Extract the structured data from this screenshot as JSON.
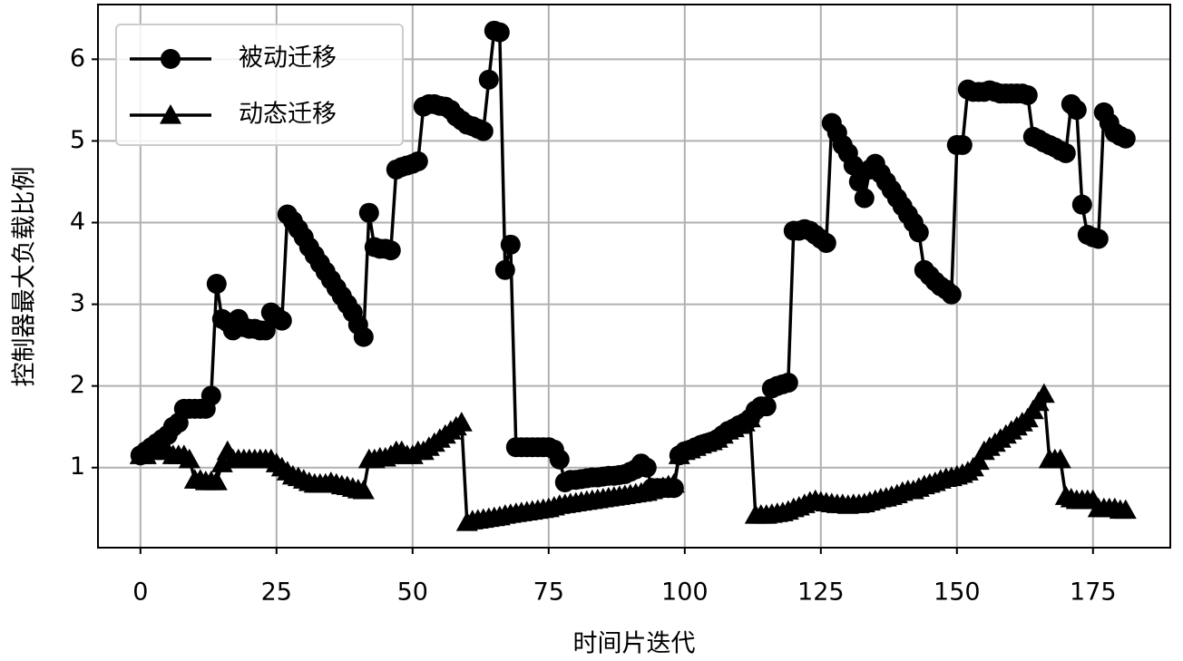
{
  "chart_data": {
    "type": "line",
    "xlabel": "时间片迭代",
    "ylabel": "控制器最大负载比例",
    "x": [
      0,
      1,
      2,
      3,
      4,
      5,
      6,
      7,
      8,
      9,
      10,
      11,
      12,
      13,
      14,
      15,
      16,
      17,
      18,
      19,
      20,
      21,
      22,
      23,
      24,
      25,
      26,
      27,
      28,
      29,
      30,
      31,
      32,
      33,
      34,
      35,
      36,
      37,
      38,
      39,
      40,
      41,
      42,
      43,
      44,
      45,
      46,
      47,
      48,
      49,
      50,
      51,
      52,
      53,
      54,
      55,
      56,
      57,
      58,
      59,
      60,
      61,
      62,
      63,
      64,
      65,
      66,
      67,
      68,
      69,
      70,
      71,
      72,
      73,
      74,
      75,
      76,
      77,
      78,
      79,
      80,
      81,
      82,
      83,
      84,
      85,
      86,
      87,
      88,
      89,
      90,
      91,
      92,
      93,
      94,
      95,
      96,
      97,
      98,
      99,
      100,
      101,
      102,
      103,
      104,
      105,
      106,
      107,
      108,
      109,
      110,
      111,
      112,
      113,
      114,
      115,
      116,
      117,
      118,
      119,
      120,
      121,
      122,
      123,
      124,
      125,
      126,
      127,
      128,
      129,
      130,
      131,
      132,
      133,
      134,
      135,
      136,
      137,
      138,
      139,
      140,
      141,
      142,
      143,
      144,
      145,
      146,
      147,
      148,
      149,
      150,
      151,
      152,
      153,
      154,
      155,
      156,
      157,
      158,
      159,
      160,
      161,
      162,
      163,
      164,
      165,
      166,
      167,
      168,
      169,
      170,
      171,
      172,
      173,
      174,
      175,
      176,
      177,
      178,
      179,
      180,
      181
    ],
    "series": [
      {
        "name": "被动迁移",
        "color": "#000000",
        "marker": "o",
        "values": [
          1.15,
          1.2,
          1.25,
          1.3,
          1.35,
          1.4,
          1.5,
          1.55,
          1.72,
          1.72,
          1.72,
          1.72,
          1.72,
          1.88,
          3.25,
          2.82,
          2.78,
          2.68,
          2.82,
          2.72,
          2.7,
          2.7,
          2.68,
          2.68,
          2.9,
          2.85,
          2.8,
          4.1,
          4.02,
          3.92,
          3.82,
          3.7,
          3.6,
          3.5,
          3.4,
          3.3,
          3.2,
          3.1,
          3.0,
          2.9,
          2.75,
          2.6,
          4.12,
          3.7,
          3.68,
          3.68,
          3.66,
          4.65,
          4.68,
          4.7,
          4.72,
          4.75,
          5.42,
          5.45,
          5.45,
          5.43,
          5.42,
          5.38,
          5.3,
          5.25,
          5.2,
          5.18,
          5.15,
          5.12,
          5.75,
          6.35,
          6.33,
          3.42,
          3.73,
          1.25,
          1.25,
          1.25,
          1.25,
          1.25,
          1.25,
          1.25,
          1.22,
          1.1,
          0.82,
          0.85,
          0.85,
          0.86,
          0.87,
          0.88,
          0.88,
          0.89,
          0.9,
          0.9,
          0.91,
          0.92,
          0.95,
          0.98,
          1.05,
          1.0,
          0.75,
          0.75,
          0.75,
          0.75,
          0.75,
          1.15,
          1.2,
          1.22,
          1.25,
          1.28,
          1.3,
          1.32,
          1.35,
          1.4,
          1.45,
          1.48,
          1.52,
          1.55,
          1.6,
          1.7,
          1.75,
          1.75,
          1.97,
          2.0,
          2.02,
          2.04,
          3.9,
          3.9,
          3.92,
          3.9,
          3.85,
          3.8,
          3.75,
          5.22,
          5.1,
          4.95,
          4.85,
          4.7,
          4.5,
          4.3,
          4.65,
          4.72,
          4.6,
          4.5,
          4.4,
          4.3,
          4.2,
          4.1,
          4.0,
          3.88,
          3.42,
          3.35,
          3.28,
          3.22,
          3.18,
          3.12,
          4.95,
          4.95,
          5.63,
          5.6,
          5.6,
          5.6,
          5.62,
          5.6,
          5.58,
          5.58,
          5.58,
          5.58,
          5.58,
          5.56,
          5.05,
          5.02,
          4.98,
          4.95,
          4.92,
          4.88,
          4.85,
          5.45,
          5.38,
          4.22,
          3.85,
          3.82,
          3.8,
          5.35,
          5.22,
          5.1,
          5.06,
          5.03
        ]
      },
      {
        "name": "动态迁移",
        "color": "#000000",
        "marker": "^",
        "values": [
          1.15,
          1.15,
          1.2,
          1.25,
          1.3,
          1.2,
          1.15,
          1.15,
          1.15,
          1.1,
          0.85,
          0.85,
          0.83,
          0.83,
          0.83,
          1.05,
          1.2,
          1.1,
          1.1,
          1.1,
          1.1,
          1.1,
          1.1,
          1.1,
          1.1,
          1.05,
          1.0,
          0.95,
          0.9,
          0.88,
          0.85,
          0.82,
          0.8,
          0.8,
          0.8,
          0.82,
          0.8,
          0.78,
          0.77,
          0.75,
          0.73,
          0.72,
          1.1,
          1.1,
          1.12,
          1.12,
          1.15,
          1.2,
          1.2,
          1.15,
          1.15,
          1.2,
          1.2,
          1.25,
          1.3,
          1.35,
          1.4,
          1.45,
          1.5,
          1.55,
          0.33,
          0.35,
          0.36,
          0.37,
          0.38,
          0.39,
          0.4,
          0.42,
          0.43,
          0.44,
          0.45,
          0.46,
          0.47,
          0.48,
          0.49,
          0.5,
          0.52,
          0.54,
          0.55,
          0.56,
          0.57,
          0.58,
          0.59,
          0.6,
          0.61,
          0.62,
          0.63,
          0.64,
          0.65,
          0.66,
          0.67,
          0.68,
          0.69,
          0.7,
          0.72,
          0.74,
          0.76,
          0.78,
          0.8,
          1.15,
          1.2,
          1.22,
          1.25,
          1.28,
          1.3,
          1.32,
          1.35,
          1.4,
          1.45,
          1.48,
          1.52,
          1.55,
          1.6,
          0.42,
          0.42,
          0.42,
          0.43,
          0.44,
          0.45,
          0.47,
          0.5,
          0.52,
          0.55,
          0.58,
          0.6,
          0.58,
          0.57,
          0.56,
          0.55,
          0.55,
          0.54,
          0.55,
          0.55,
          0.56,
          0.58,
          0.6,
          0.62,
          0.63,
          0.65,
          0.67,
          0.7,
          0.72,
          0.72,
          0.75,
          0.78,
          0.8,
          0.82,
          0.85,
          0.87,
          0.88,
          0.9,
          0.92,
          0.95,
          1.0,
          1.08,
          1.2,
          1.25,
          1.3,
          1.35,
          1.4,
          1.45,
          1.5,
          1.55,
          1.6,
          1.7,
          1.8,
          1.9,
          1.1,
          1.1,
          1.1,
          0.65,
          0.62,
          0.6,
          0.6,
          0.6,
          0.6,
          0.5,
          0.5,
          0.5,
          0.5,
          0.48,
          0.48
        ]
      }
    ],
    "xlim": [
      -7.8,
      189.2
    ],
    "xticks": [
      0,
      25,
      50,
      75,
      100,
      125,
      150,
      175
    ],
    "ylim": [
      0.02,
      6.67
    ],
    "yticks": [
      1,
      2,
      3,
      4,
      5,
      6
    ],
    "grid": true,
    "legend": "upper left"
  }
}
